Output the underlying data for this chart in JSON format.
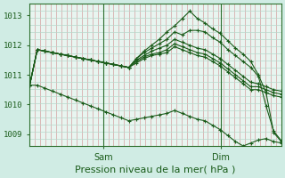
{
  "outer_bg": "#d0ece4",
  "plot_bg": "#e8f5f0",
  "line_color": "#1a5c1a",
  "grid_v_color": "#d4a0a0",
  "grid_h_color": "#b8d8cc",
  "title": "Pression niveau de la mer( hPa )",
  "xlabel_sam": "Sam",
  "xlabel_dim": "Dim",
  "ylim": [
    1008.6,
    1013.4
  ],
  "yticks": [
    1009,
    1010,
    1011,
    1012,
    1013
  ],
  "xlim": [
    0,
    48
  ],
  "sam_x": 14.0,
  "dim_x": 36.5,
  "n_vert_minor": 48,
  "n_horiz_minor": 20,
  "series": [
    [
      1010.65,
      1011.85,
      1011.8,
      1011.75,
      1011.7,
      1011.65,
      1011.6,
      1011.55,
      1011.5,
      1011.45,
      1011.4,
      1011.35,
      1011.3,
      1011.25,
      1011.55,
      1011.8,
      1012.0,
      1012.2,
      1012.45,
      1012.65,
      1012.9,
      1013.15,
      1012.9,
      1012.75,
      1012.55,
      1012.4,
      1012.15,
      1011.9,
      1011.7,
      1011.45,
      1011.0,
      1010.4,
      1009.05,
      1008.75
    ],
    [
      1010.65,
      1011.85,
      1011.8,
      1011.75,
      1011.7,
      1011.65,
      1011.6,
      1011.55,
      1011.5,
      1011.45,
      1011.4,
      1011.35,
      1011.3,
      1011.25,
      1011.55,
      1011.75,
      1011.9,
      1012.05,
      1012.2,
      1012.45,
      1012.35,
      1012.5,
      1012.5,
      1012.45,
      1012.25,
      1012.1,
      1011.85,
      1011.65,
      1011.45,
      1011.25,
      1010.95,
      1009.95,
      1009.1,
      1008.78
    ],
    [
      1010.65,
      1011.85,
      1011.8,
      1011.75,
      1011.7,
      1011.65,
      1011.6,
      1011.55,
      1011.5,
      1011.45,
      1011.4,
      1011.35,
      1011.3,
      1011.25,
      1011.5,
      1011.65,
      1011.8,
      1011.9,
      1012.0,
      1012.2,
      1012.1,
      1012.0,
      1011.9,
      1011.85,
      1011.7,
      1011.55,
      1011.35,
      1011.15,
      1010.95,
      1010.75,
      1010.7,
      1010.6,
      1010.5,
      1010.45
    ],
    [
      1010.65,
      1011.85,
      1011.8,
      1011.75,
      1011.7,
      1011.65,
      1011.6,
      1011.55,
      1011.5,
      1011.45,
      1011.4,
      1011.35,
      1011.3,
      1011.25,
      1011.45,
      1011.6,
      1011.7,
      1011.75,
      1011.85,
      1012.05,
      1011.95,
      1011.85,
      1011.75,
      1011.7,
      1011.55,
      1011.4,
      1011.2,
      1011.0,
      1010.8,
      1010.6,
      1010.6,
      1010.5,
      1010.4,
      1010.35
    ],
    [
      1010.65,
      1011.85,
      1011.8,
      1011.75,
      1011.7,
      1011.65,
      1011.6,
      1011.55,
      1011.5,
      1011.45,
      1011.4,
      1011.35,
      1011.3,
      1011.25,
      1011.4,
      1011.55,
      1011.65,
      1011.7,
      1011.75,
      1011.95,
      1011.85,
      1011.75,
      1011.65,
      1011.6,
      1011.45,
      1011.3,
      1011.1,
      1010.9,
      1010.7,
      1010.5,
      1010.5,
      1010.4,
      1010.3,
      1010.25
    ],
    [
      1010.65,
      1010.65,
      1010.55,
      1010.45,
      1010.35,
      1010.25,
      1010.15,
      1010.05,
      1009.95,
      1009.85,
      1009.75,
      1009.65,
      1009.55,
      1009.45,
      1009.5,
      1009.55,
      1009.6,
      1009.65,
      1009.7,
      1009.8,
      1009.7,
      1009.6,
      1009.5,
      1009.45,
      1009.3,
      1009.15,
      1008.95,
      1008.75,
      1008.6,
      1008.7,
      1008.8,
      1008.85,
      1008.75,
      1008.7
    ]
  ],
  "marker_size": 2.0,
  "line_width": 0.8,
  "title_fontsize": 8.0,
  "tick_fontsize": 6.5
}
